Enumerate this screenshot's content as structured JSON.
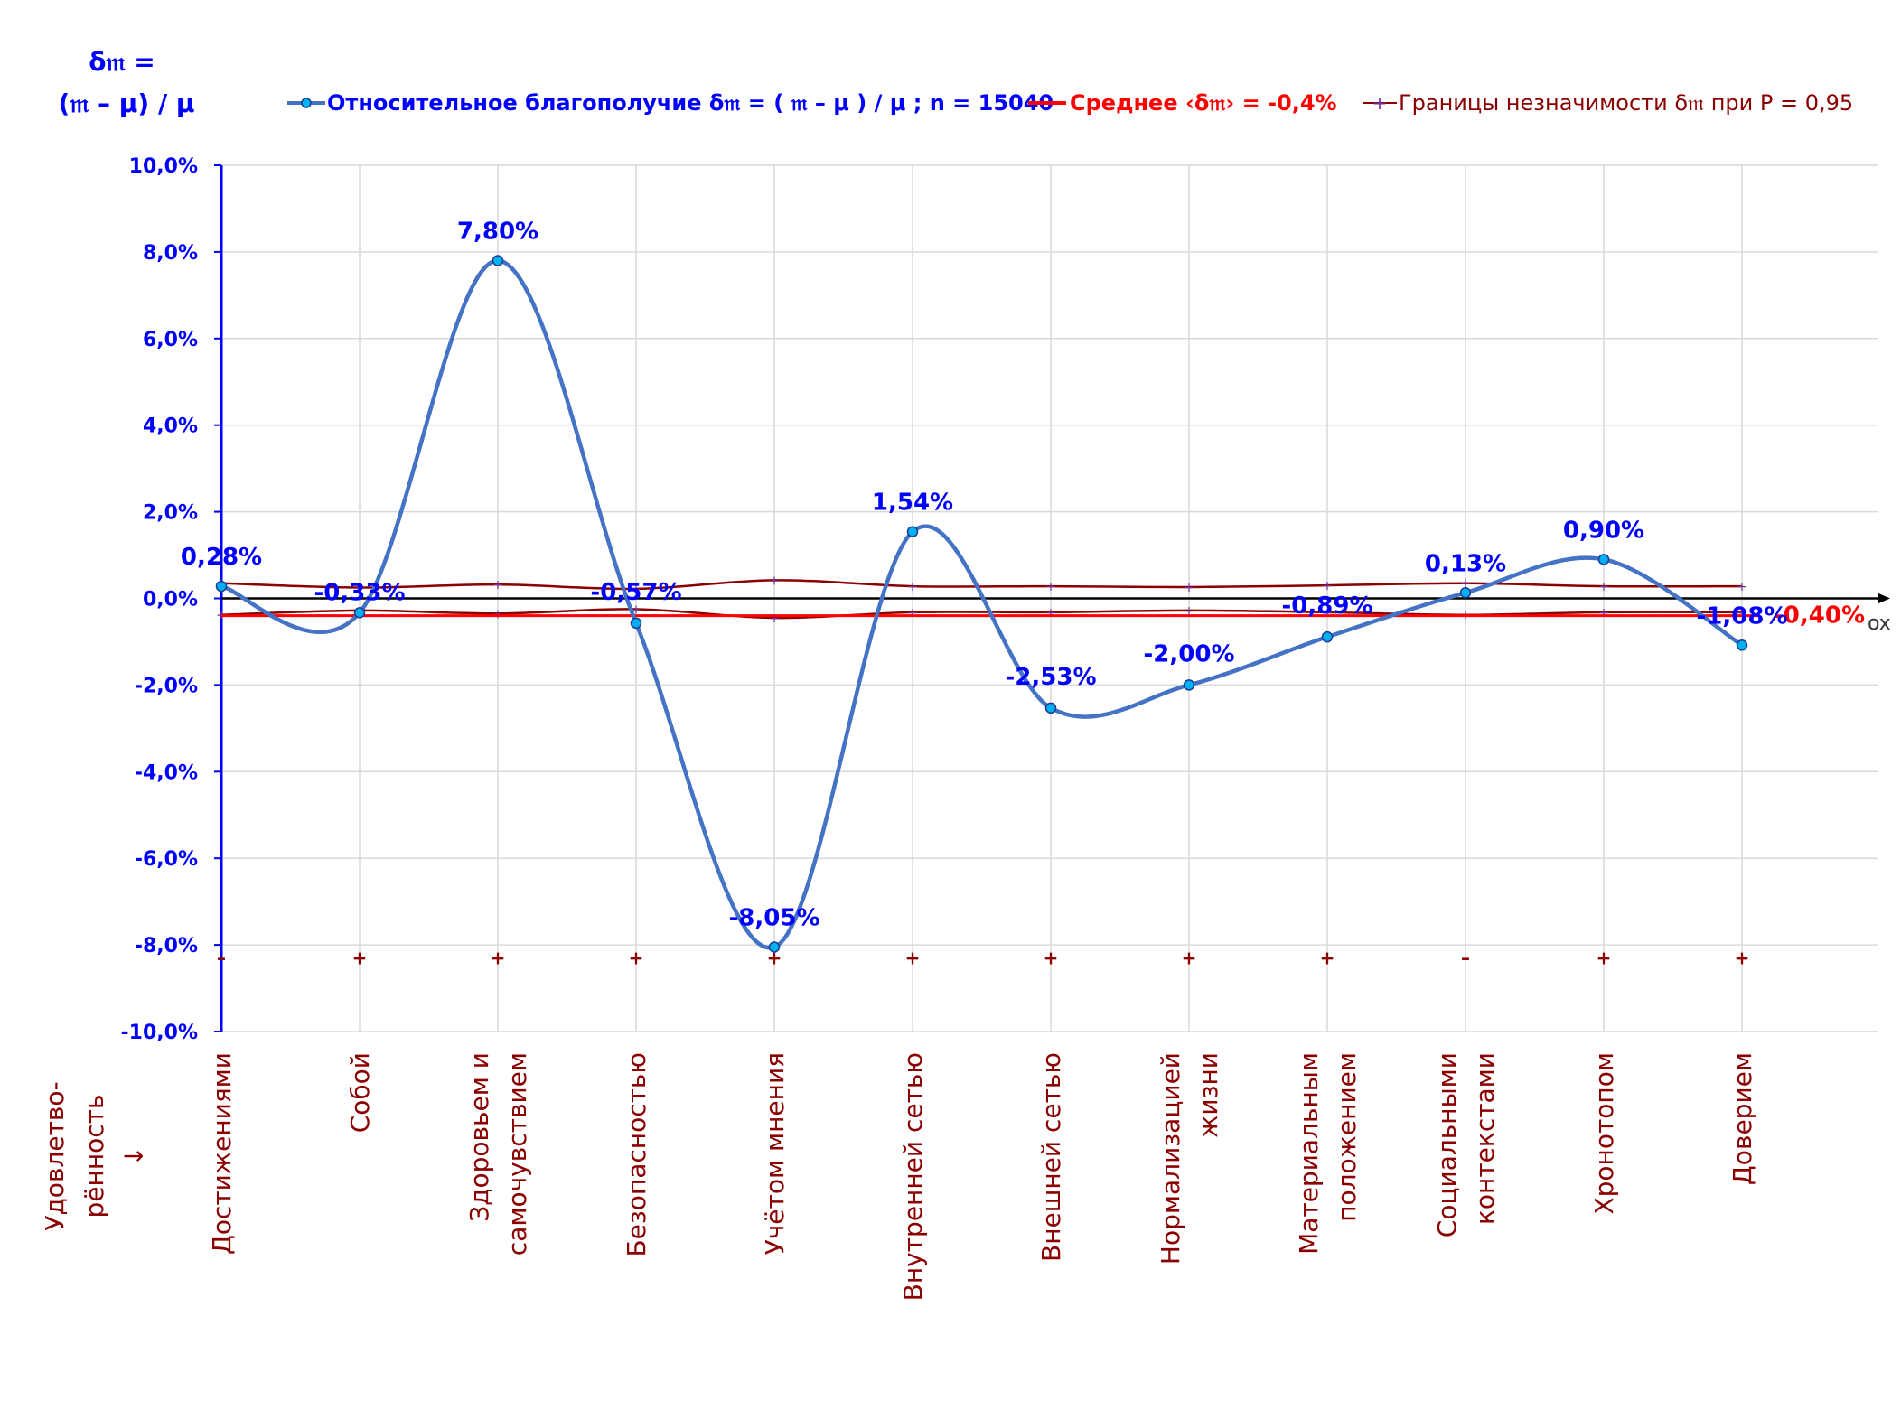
{
  "chart_data": {
    "type": "line",
    "y_label": [
      "δ𝔪 =",
      "(𝔪 – μ) / μ"
    ],
    "x_axis_name": "ox",
    "side_label": [
      "Удовлетво-",
      "рённость",
      "↓"
    ],
    "categories": [
      [
        "Достижениями"
      ],
      [
        "Собой"
      ],
      [
        "Здоровьем и",
        "самочувствием"
      ],
      [
        "Безопасностью"
      ],
      [
        "Учётом мнения"
      ],
      [
        "Внутренней сетью"
      ],
      [
        "Внешней сетью"
      ],
      [
        "Нормализацией",
        "жизни"
      ],
      [
        "Материальным",
        "положением"
      ],
      [
        "Социальными",
        "контекстами"
      ],
      [
        "Хронотопом"
      ],
      [
        "Доверием"
      ]
    ],
    "ylim": [
      -10,
      10
    ],
    "yticks": [
      10,
      8,
      6,
      4,
      2,
      0,
      -2,
      -4,
      -6,
      -8,
      -10
    ],
    "ytick_labels": [
      "10,0%",
      "8,0%",
      "6,0%",
      "4,0%",
      "2,0%",
      "0,0%",
      "-2,0%",
      "-4,0%",
      "-6,0%",
      "-8,0%",
      "-10,0%"
    ],
    "grid": true,
    "series": [
      {
        "name": "Относительное благополучие δ𝔪 = ( 𝔪 – μ ) / μ ; n = 15040",
        "values": [
          0.28,
          -0.33,
          7.8,
          -0.57,
          -8.05,
          1.54,
          -2.53,
          -2.0,
          -0.89,
          0.13,
          0.9,
          -1.08
        ],
        "labels": [
          "0,28%",
          "-0,33%",
          "7,80%",
          "-0,57%",
          "-8,05%",
          "1,54%",
          "-2,53%",
          "-2,00%",
          "-0,89%",
          "0,13%",
          "0,90%",
          "-1,08%"
        ],
        "color": "#4472c4"
      },
      {
        "name": "Среднее ‹δ𝔪› = -0,4%",
        "value": -0.4,
        "end_label": "-0,40%",
        "color": "#ff0000"
      },
      {
        "name": "Границы незначимости δ𝔪 при P = 0,95",
        "upper": [
          0.35,
          0.25,
          0.32,
          0.22,
          0.42,
          0.28,
          0.28,
          0.26,
          0.3,
          0.35,
          0.28,
          0.28
        ],
        "lower": [
          -0.38,
          -0.28,
          -0.35,
          -0.25,
          -0.45,
          -0.32,
          -0.32,
          -0.28,
          -0.32,
          -0.38,
          -0.32,
          -0.32
        ],
        "markers": [
          "–",
          "+",
          "+",
          "+",
          "+",
          "+",
          "+",
          "+",
          "+",
          "–",
          "+",
          "+"
        ],
        "marker_level": -8.3,
        "color": "#8b0000"
      }
    ]
  }
}
